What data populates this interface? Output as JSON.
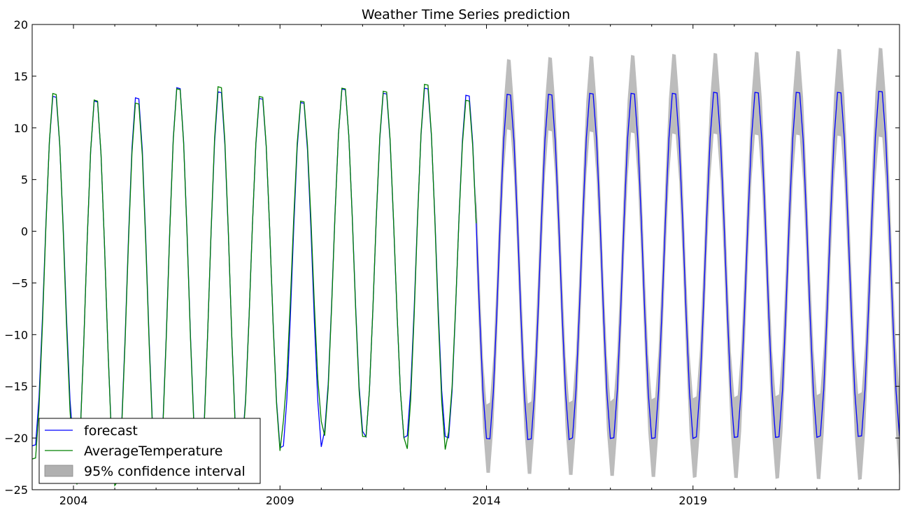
{
  "chart_data": {
    "type": "line",
    "title": "Weather Time Series prediction",
    "xlabel": "",
    "ylabel": "",
    "xlim": [
      2003.0,
      2024.0
    ],
    "ylim": [
      -25,
      20
    ],
    "x_ticks": [
      2004,
      2009,
      2014,
      2019
    ],
    "y_ticks": [
      20,
      15,
      10,
      5,
      0,
      -5,
      -10,
      -15,
      -20,
      -25
    ],
    "grid": false,
    "legend_position": "lower-left",
    "observed": {
      "x_start": 2003.0,
      "x_end": 2013.75,
      "step": 0.08333,
      "seasonal_max": [
        13.9,
        13.3,
        13.0,
        14.4,
        14.6,
        13.6,
        13.1,
        14.4,
        14.1,
        14.8,
        13.2
      ],
      "seasonal_min": [
        -22.6,
        -25.2,
        -24.8,
        -24.6,
        -24.6,
        -21.8,
        -18.9,
        -20.4,
        -20.5,
        -21.7,
        -20.0
      ]
    },
    "forecast": {
      "x_start": 2003.0,
      "x_end": 2024.0,
      "step": 0.08333,
      "seasonal_max": [
        13.6,
        13.2,
        13.5,
        14.5,
        14.1,
        13.4,
        13.0,
        14.3,
        13.9,
        14.4,
        13.7,
        13.8,
        13.8,
        13.9,
        13.9,
        13.9,
        14.0,
        14.0,
        14.0,
        14.0,
        14.1
      ],
      "seasonal_min": [
        -21.3,
        -25.0,
        -24.5,
        -24.3,
        -24.2,
        -21.5,
        -21.4,
        -19.9,
        -20.5,
        -20.4,
        -20.6,
        -20.7,
        -20.7,
        -20.6,
        -20.6,
        -20.6,
        -20.5,
        -20.5,
        -20.5,
        -20.4,
        -20.4
      ]
    },
    "confidence_interval": {
      "x_start": 2013.75,
      "x_end": 2024.0,
      "upper_max": [
        17.0,
        17.2,
        17.4,
        17.5,
        17.6,
        17.7,
        17.8,
        17.9,
        18.0,
        18.2,
        18.3
      ],
      "lower_max": [
        10.5,
        10.4,
        10.3,
        10.2,
        10.1,
        10.0,
        10.0,
        9.9,
        9.9,
        9.8,
        9.7
      ],
      "upper_min": [
        -17.3,
        -17.2,
        -17.1,
        -17.0,
        -16.8,
        -16.7,
        -16.6,
        -16.5,
        -16.4,
        -16.3,
        -16.2
      ],
      "lower_min": [
        -23.9,
        -24.0,
        -24.1,
        -24.2,
        -24.3,
        -24.4,
        -24.4,
        -24.5,
        -24.5,
        -24.6,
        -24.6
      ]
    },
    "series": [
      {
        "name": "forecast",
        "color": "#0000ff"
      },
      {
        "name": "AverageTemperature",
        "color": "#008000"
      },
      {
        "name": "95% confidence interval",
        "color": "#b0b0b0"
      }
    ]
  }
}
